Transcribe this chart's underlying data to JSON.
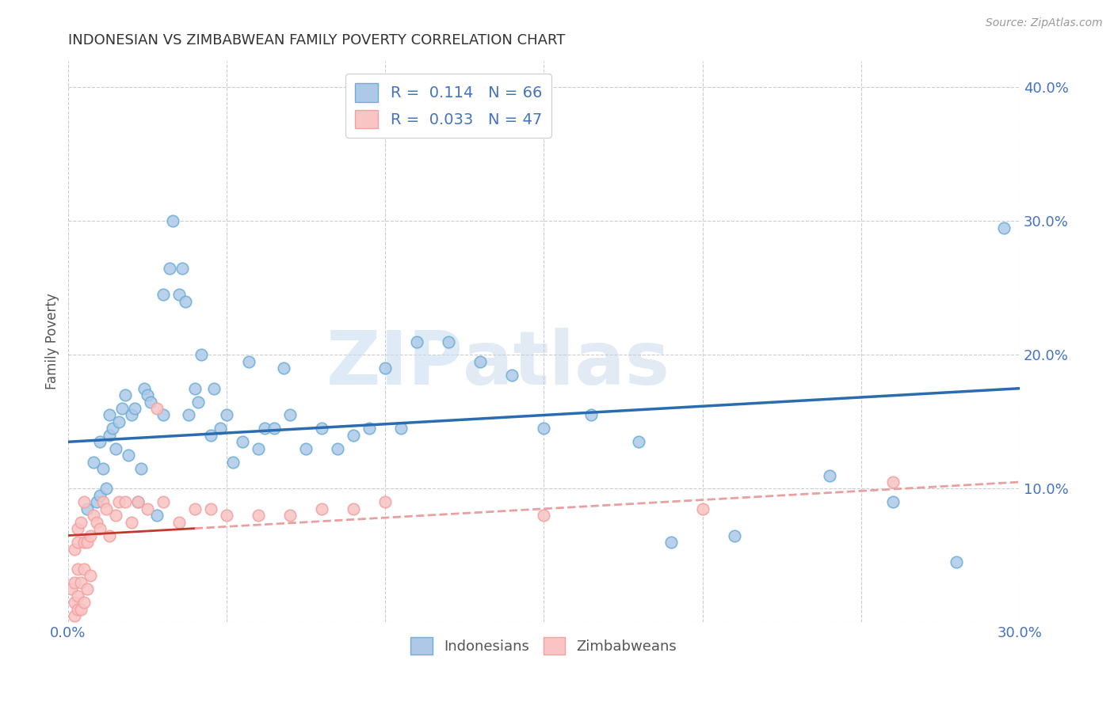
{
  "title": "INDONESIAN VS ZIMBABWEAN FAMILY POVERTY CORRELATION CHART",
  "source": "Source: ZipAtlas.com",
  "xlabel": "",
  "ylabel": "Family Poverty",
  "x_min": 0.0,
  "x_max": 0.3,
  "y_min": 0.0,
  "y_max": 0.42,
  "x_ticks": [
    0.0,
    0.05,
    0.1,
    0.15,
    0.2,
    0.25,
    0.3
  ],
  "x_tick_labels": [
    "0.0%",
    "",
    "",
    "",
    "",
    "",
    "30.0%"
  ],
  "y_ticks": [
    0.0,
    0.1,
    0.2,
    0.3,
    0.4
  ],
  "y_tick_labels": [
    "",
    "10.0%",
    "20.0%",
    "30.0%",
    "40.0%"
  ],
  "indonesian_color": "#aec9e8",
  "indonesian_edge_color": "#6baed6",
  "zimbabwean_color": "#f9c4c4",
  "zimbabwean_edge_color": "#f4a0a0",
  "trend_line_indonesian_color": "#2b6cb0",
  "trend_line_zimbabwean_color": "#c0392b",
  "trend_line_zimb_dash_color": "#e8a0a0",
  "legend_r_indonesian": "0.114",
  "legend_n_indonesian": "66",
  "legend_r_zimbabwean": "0.033",
  "legend_n_zimbabwean": "47",
  "legend_label_indonesian": "Indonesians",
  "legend_label_zimbabwean": "Zimbabweans",
  "watermark_zip": "ZIP",
  "watermark_atlas": "atlas",
  "indonesian_x": [
    0.006,
    0.008,
    0.009,
    0.01,
    0.01,
    0.011,
    0.012,
    0.013,
    0.013,
    0.014,
    0.015,
    0.016,
    0.017,
    0.018,
    0.019,
    0.02,
    0.021,
    0.022,
    0.023,
    0.024,
    0.025,
    0.026,
    0.028,
    0.03,
    0.03,
    0.032,
    0.033,
    0.035,
    0.036,
    0.037,
    0.038,
    0.04,
    0.041,
    0.042,
    0.045,
    0.046,
    0.048,
    0.05,
    0.052,
    0.055,
    0.057,
    0.06,
    0.062,
    0.065,
    0.068,
    0.07,
    0.075,
    0.08,
    0.085,
    0.09,
    0.095,
    0.1,
    0.105,
    0.11,
    0.12,
    0.13,
    0.14,
    0.15,
    0.165,
    0.18,
    0.19,
    0.21,
    0.24,
    0.26,
    0.28,
    0.295
  ],
  "indonesian_y": [
    0.085,
    0.12,
    0.09,
    0.095,
    0.135,
    0.115,
    0.1,
    0.14,
    0.155,
    0.145,
    0.13,
    0.15,
    0.16,
    0.17,
    0.125,
    0.155,
    0.16,
    0.09,
    0.115,
    0.175,
    0.17,
    0.165,
    0.08,
    0.155,
    0.245,
    0.265,
    0.3,
    0.245,
    0.265,
    0.24,
    0.155,
    0.175,
    0.165,
    0.2,
    0.14,
    0.175,
    0.145,
    0.155,
    0.12,
    0.135,
    0.195,
    0.13,
    0.145,
    0.145,
    0.19,
    0.155,
    0.13,
    0.145,
    0.13,
    0.14,
    0.145,
    0.19,
    0.145,
    0.21,
    0.21,
    0.195,
    0.185,
    0.145,
    0.155,
    0.135,
    0.06,
    0.065,
    0.11,
    0.09,
    0.045,
    0.295
  ],
  "zimbabwean_x": [
    0.001,
    0.002,
    0.002,
    0.002,
    0.002,
    0.003,
    0.003,
    0.003,
    0.003,
    0.003,
    0.004,
    0.004,
    0.004,
    0.005,
    0.005,
    0.005,
    0.005,
    0.006,
    0.006,
    0.007,
    0.007,
    0.008,
    0.009,
    0.01,
    0.011,
    0.012,
    0.013,
    0.015,
    0.016,
    0.018,
    0.02,
    0.022,
    0.025,
    0.028,
    0.03,
    0.035,
    0.04,
    0.045,
    0.05,
    0.06,
    0.07,
    0.08,
    0.09,
    0.1,
    0.15,
    0.2,
    0.26
  ],
  "zimbabwean_y": [
    0.025,
    0.005,
    0.015,
    0.03,
    0.055,
    0.01,
    0.02,
    0.04,
    0.06,
    0.07,
    0.01,
    0.03,
    0.075,
    0.015,
    0.04,
    0.06,
    0.09,
    0.025,
    0.06,
    0.035,
    0.065,
    0.08,
    0.075,
    0.07,
    0.09,
    0.085,
    0.065,
    0.08,
    0.09,
    0.09,
    0.075,
    0.09,
    0.085,
    0.16,
    0.09,
    0.075,
    0.085,
    0.085,
    0.08,
    0.08,
    0.08,
    0.085,
    0.085,
    0.09,
    0.08,
    0.085,
    0.105
  ],
  "trend_indo_x0": 0.0,
  "trend_indo_y0": 0.135,
  "trend_indo_x1": 0.3,
  "trend_indo_y1": 0.175,
  "trend_zimb_x0": 0.0,
  "trend_zimb_y0": 0.065,
  "trend_zimb_x1": 0.3,
  "trend_zimb_y1": 0.105
}
